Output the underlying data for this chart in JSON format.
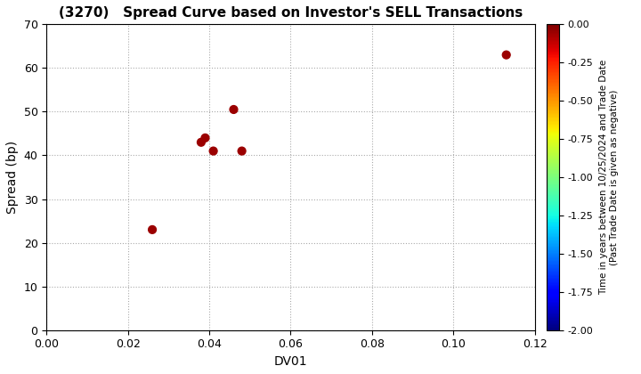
{
  "title": "(3270)   Spread Curve based on Investor's SELL Transactions",
  "xlabel": "DV01",
  "ylabel": "Spread (bp)",
  "xlim": [
    0.0,
    0.12
  ],
  "ylim": [
    0,
    70
  ],
  "xticks": [
    0.0,
    0.02,
    0.04,
    0.06,
    0.08,
    0.1,
    0.12
  ],
  "yticks": [
    0,
    10,
    20,
    30,
    40,
    50,
    60,
    70
  ],
  "scatter_x": [
    0.026,
    0.038,
    0.039,
    0.041,
    0.046,
    0.048,
    0.113
  ],
  "scatter_y": [
    23,
    43,
    44,
    41,
    50.5,
    41,
    63
  ],
  "scatter_c": [
    -0.05,
    -0.05,
    -0.05,
    -0.05,
    -0.05,
    -0.05,
    -0.05
  ],
  "colorbar_min": -2.0,
  "colorbar_max": 0.0,
  "colorbar_ticks": [
    0.0,
    -0.25,
    -0.5,
    -0.75,
    -1.0,
    -1.25,
    -1.5,
    -1.75,
    -2.0
  ],
  "colorbar_label": "Time in years between 10/25/2024 and Trade Date\n(Past Trade Date is given as negative)",
  "background_color": "#ffffff",
  "grid_color": "#aaaaaa",
  "scatter_size": 40,
  "title_fontsize": 11,
  "axis_fontsize": 10,
  "tick_fontsize": 9
}
